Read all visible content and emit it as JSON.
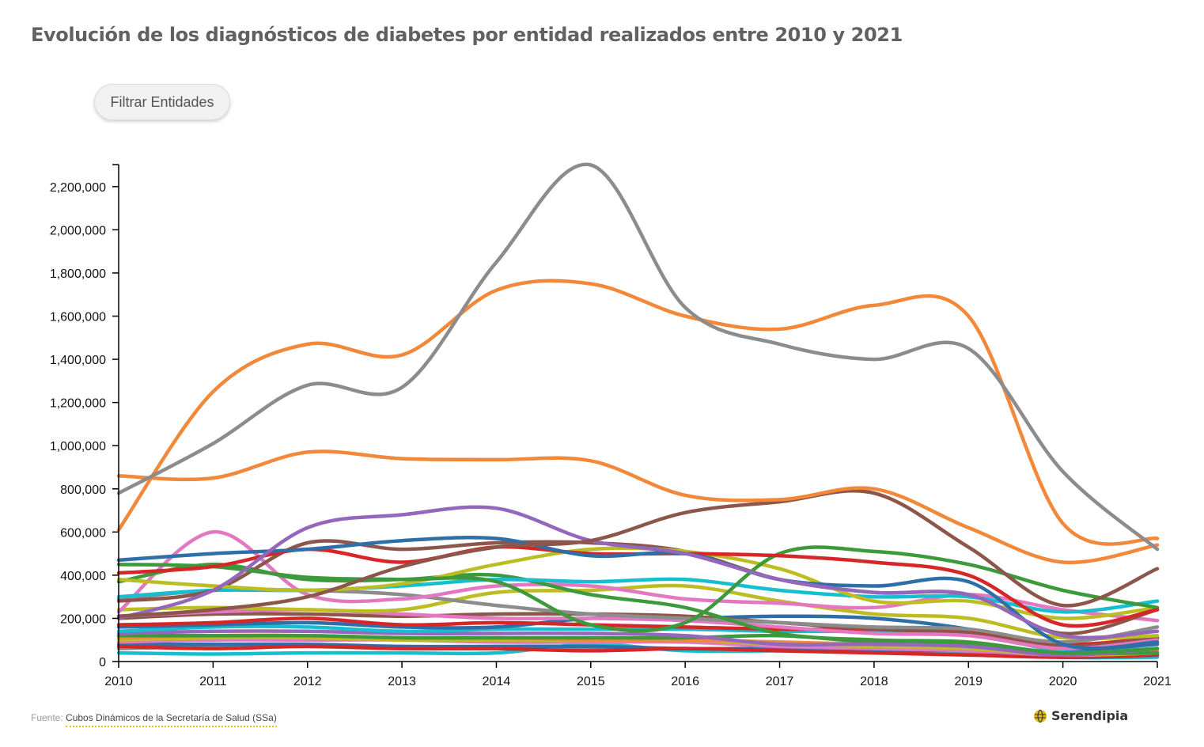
{
  "title": "Evolución de los diagnósticos de diabetes por entidad realizados entre 2010 y 2021",
  "filter_button": {
    "label": "Filtrar Entidades"
  },
  "footer": {
    "prefix": "Fuente: ",
    "source": "Cubos Dinámicos de la Secretaría de Salud (SSa)"
  },
  "brand": {
    "name": "Serendipia",
    "logo_icon": "serendipia-globe-icon",
    "logo_color": "#e0b81f"
  },
  "chart_data": {
    "type": "line",
    "title": "Evolución de los diagnósticos de diabetes por entidad realizados entre 2010 y 2021",
    "xlabel": "",
    "ylabel": "",
    "x": [
      2010,
      2011,
      2012,
      2013,
      2014,
      2015,
      2016,
      2017,
      2018,
      2019,
      2020,
      2021
    ],
    "xlim": [
      2010,
      2021
    ],
    "ylim": [
      0,
      2300000
    ],
    "y_ticks": [
      0,
      200000,
      400000,
      600000,
      800000,
      1000000,
      1200000,
      1400000,
      1600000,
      1800000,
      2000000,
      2200000
    ],
    "grid": false,
    "legend": "none",
    "series": [
      {
        "color": "#8c8c8c",
        "values": [
          780000,
          1010000,
          1280000,
          1270000,
          1850000,
          2300000,
          1640000,
          1470000,
          1400000,
          1450000,
          880000,
          520000
        ]
      },
      {
        "color": "#f2883a",
        "values": [
          610000,
          1250000,
          1470000,
          1420000,
          1720000,
          1750000,
          1600000,
          1540000,
          1650000,
          1600000,
          640000,
          570000
        ]
      },
      {
        "color": "#f2883a",
        "values": [
          860000,
          850000,
          970000,
          940000,
          935000,
          930000,
          770000,
          750000,
          800000,
          620000,
          460000,
          540000
        ]
      },
      {
        "color": "#8c564b",
        "values": [
          210000,
          240000,
          300000,
          440000,
          530000,
          560000,
          690000,
          740000,
          780000,
          530000,
          260000,
          430000
        ]
      },
      {
        "color": "#9467bd",
        "values": [
          200000,
          330000,
          620000,
          680000,
          710000,
          560000,
          500000,
          380000,
          320000,
          310000,
          120000,
          140000
        ]
      },
      {
        "color": "#2e6fa8",
        "values": [
          470000,
          500000,
          520000,
          560000,
          570000,
          490000,
          500000,
          380000,
          350000,
          370000,
          80000,
          90000
        ]
      },
      {
        "color": "#d62728",
        "values": [
          410000,
          440000,
          520000,
          460000,
          530000,
          500000,
          500000,
          490000,
          460000,
          400000,
          170000,
          240000
        ]
      },
      {
        "color": "#3c9a3c",
        "values": [
          450000,
          440000,
          390000,
          380000,
          370000,
          170000,
          180000,
          500000,
          510000,
          450000,
          330000,
          250000
        ]
      },
      {
        "color": "#bcbd22",
        "values": [
          380000,
          350000,
          330000,
          360000,
          450000,
          520000,
          510000,
          430000,
          280000,
          280000,
          200000,
          250000
        ]
      },
      {
        "color": "#8c564b",
        "values": [
          280000,
          330000,
          550000,
          520000,
          550000,
          550000,
          510000,
          380000,
          320000,
          310000,
          130000,
          240000
        ]
      },
      {
        "color": "#17becf",
        "values": [
          300000,
          330000,
          330000,
          350000,
          380000,
          370000,
          380000,
          330000,
          300000,
          300000,
          230000,
          280000
        ]
      },
      {
        "color": "#3c9a3c",
        "values": [
          370000,
          450000,
          380000,
          380000,
          400000,
          310000,
          250000,
          130000,
          100000,
          90000,
          40000,
          60000
        ]
      },
      {
        "color": "#e377c2",
        "values": [
          230000,
          600000,
          310000,
          290000,
          350000,
          350000,
          290000,
          270000,
          250000,
          310000,
          240000,
          190000
        ]
      },
      {
        "color": "#8c8c8c",
        "values": [
          290000,
          330000,
          330000,
          310000,
          260000,
          220000,
          200000,
          180000,
          160000,
          150000,
          90000,
          160000
        ]
      },
      {
        "color": "#bcbd22",
        "values": [
          240000,
          250000,
          240000,
          240000,
          320000,
          330000,
          350000,
          280000,
          220000,
          200000,
          110000,
          120000
        ]
      },
      {
        "color": "#e377c2",
        "values": [
          210000,
          230000,
          240000,
          220000,
          200000,
          200000,
          190000,
          160000,
          130000,
          120000,
          60000,
          100000
        ]
      },
      {
        "color": "#8c564b",
        "values": [
          200000,
          220000,
          220000,
          210000,
          220000,
          220000,
          210000,
          180000,
          150000,
          130000,
          70000,
          110000
        ]
      },
      {
        "color": "#d62728",
        "values": [
          170000,
          180000,
          200000,
          170000,
          180000,
          170000,
          160000,
          150000,
          150000,
          140000,
          80000,
          110000
        ]
      },
      {
        "color": "#2e6fa8",
        "values": [
          160000,
          170000,
          180000,
          160000,
          160000,
          200000,
          200000,
          210000,
          200000,
          150000,
          60000,
          80000
        ]
      },
      {
        "color": "#17becf",
        "values": [
          140000,
          160000,
          160000,
          140000,
          150000,
          150000,
          150000,
          140000,
          140000,
          130000,
          50000,
          60000
        ]
      },
      {
        "color": "#9467bd",
        "values": [
          130000,
          140000,
          140000,
          130000,
          130000,
          130000,
          120000,
          80000,
          80000,
          70000,
          30000,
          60000
        ]
      },
      {
        "color": "#3c9a3c",
        "values": [
          120000,
          120000,
          120000,
          110000,
          110000,
          110000,
          110000,
          120000,
          90000,
          80000,
          40000,
          40000
        ]
      },
      {
        "color": "#f2883a",
        "values": [
          110000,
          120000,
          120000,
          110000,
          110000,
          100000,
          100000,
          90000,
          80000,
          70000,
          30000,
          50000
        ]
      },
      {
        "color": "#bcbd22",
        "values": [
          100000,
          110000,
          110000,
          100000,
          100000,
          100000,
          100000,
          80000,
          70000,
          60000,
          30000,
          40000
        ]
      },
      {
        "color": "#e377c2",
        "values": [
          90000,
          100000,
          100000,
          100000,
          90000,
          90000,
          90000,
          70000,
          60000,
          50000,
          30000,
          40000
        ]
      },
      {
        "color": "#d62728",
        "values": [
          70000,
          60000,
          70000,
          60000,
          60000,
          50000,
          60000,
          50000,
          40000,
          30000,
          20000,
          30000
        ]
      },
      {
        "color": "#2e6fa8",
        "values": [
          80000,
          80000,
          80000,
          70000,
          70000,
          70000,
          60000,
          60000,
          50000,
          50000,
          20000,
          30000
        ]
      },
      {
        "color": "#17becf",
        "values": [
          40000,
          35000,
          40000,
          40000,
          40000,
          80000,
          50000,
          50000,
          50000,
          50000,
          20000,
          20000
        ]
      },
      {
        "color": "#8c8c8c",
        "values": [
          60000,
          70000,
          70000,
          60000,
          60000,
          60000,
          60000,
          50000,
          50000,
          40000,
          20000,
          30000
        ]
      }
    ]
  }
}
